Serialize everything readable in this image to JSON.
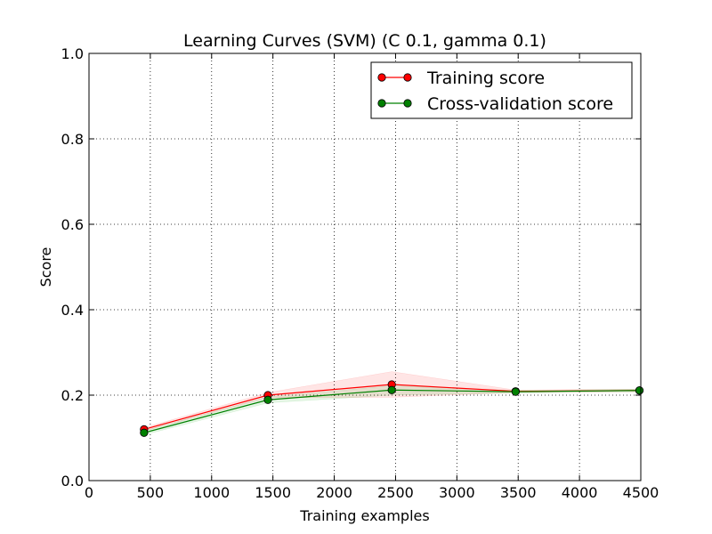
{
  "chart_data": {
    "type": "line",
    "title": "Learning Curves (SVM) (C 0.1, gamma 0.1)",
    "xlabel": "Training examples",
    "ylabel": "Score",
    "xlim": [
      0,
      4500
    ],
    "ylim": [
      0.0,
      1.0
    ],
    "xticks": [
      0,
      500,
      1000,
      1500,
      2000,
      2500,
      3000,
      3500,
      4000,
      4500
    ],
    "yticks": [
      0.0,
      0.2,
      0.4,
      0.6,
      0.8,
      1.0
    ],
    "xtick_labels": [
      "0",
      "500",
      "1000",
      "1500",
      "2000",
      "2500",
      "3000",
      "3500",
      "4000",
      "4500"
    ],
    "ytick_labels": [
      "0.0",
      "0.2",
      "0.4",
      "0.6",
      "0.8",
      "1.0"
    ],
    "grid": true,
    "legend_position": "top-right",
    "x": [
      449,
      1459,
      2469,
      3479,
      4489
    ],
    "series": [
      {
        "name": "Training score",
        "color": "#ff0000",
        "fill_color": "#ff0000",
        "values": [
          0.12,
          0.2,
          0.225,
          0.209,
          0.211
        ],
        "upper": [
          0.124,
          0.206,
          0.255,
          0.212,
          0.214
        ],
        "lower": [
          0.116,
          0.194,
          0.195,
          0.206,
          0.208
        ]
      },
      {
        "name": "Cross-validation score",
        "color": "#008000",
        "fill_color": "#00aa00",
        "values": [
          0.112,
          0.189,
          0.212,
          0.208,
          0.211
        ],
        "upper": [
          0.117,
          0.196,
          0.222,
          0.211,
          0.214
        ],
        "lower": [
          0.107,
          0.182,
          0.2,
          0.205,
          0.208
        ]
      }
    ]
  }
}
